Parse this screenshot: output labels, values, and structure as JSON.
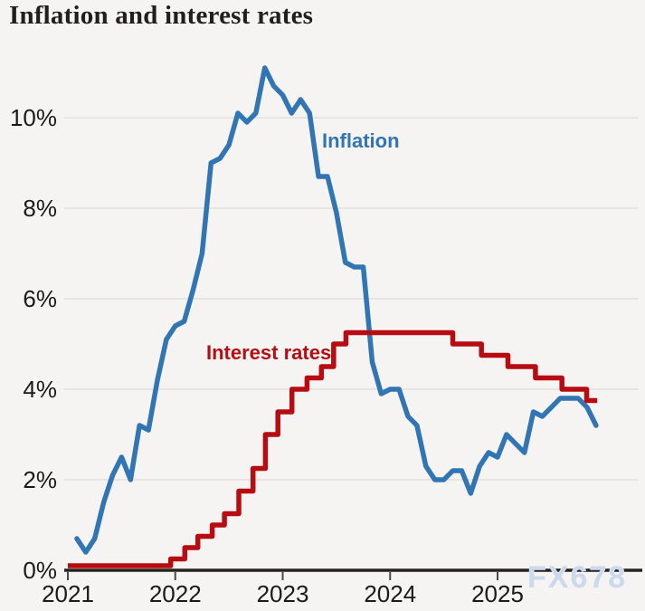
{
  "page": {
    "title": "Inflation and interest rates",
    "watermark": "FX678"
  },
  "colors": {
    "inflation_blue": "#3175b5",
    "interest_red": "#b70d12",
    "grid": "#e2e0dd",
    "axis": "#262220",
    "tick": "#4a4a4a",
    "label_text": "#1a1a1a",
    "background": "#f5f4f2",
    "watermark": "#ccd9ec"
  },
  "chart_data": {
    "type": "line",
    "title": "Inflation and interest rates",
    "xlabel": "",
    "ylabel": "",
    "x_ticks": [
      2021,
      2022,
      2023,
      2024,
      2025
    ],
    "x_tick_labels": [
      "2021",
      "2022",
      "2023",
      "2024",
      "2025"
    ],
    "y_ticks": [
      0,
      2,
      4,
      6,
      8,
      10
    ],
    "y_tick_labels": [
      "0%",
      "2%",
      "4%",
      "6%",
      "8%",
      "10%"
    ],
    "xlim": [
      2021,
      2026.4
    ],
    "ylim": [
      0,
      11.6
    ],
    "grid": "horizontal-only",
    "legend_position": "inline-labels-on-chart",
    "series": [
      {
        "name": "Inflation",
        "style": "line",
        "unit": "%",
        "color_key": "inflation_blue",
        "monthly_points": [
          [
            "2021-01",
            0.7
          ],
          [
            "2021-02",
            0.4
          ],
          [
            "2021-03",
            0.7
          ],
          [
            "2021-04",
            1.5
          ],
          [
            "2021-05",
            2.1
          ],
          [
            "2021-06",
            2.5
          ],
          [
            "2021-07",
            2.0
          ],
          [
            "2021-08",
            3.2
          ],
          [
            "2021-09",
            3.1
          ],
          [
            "2021-10",
            4.2
          ],
          [
            "2021-11",
            5.1
          ],
          [
            "2021-12",
            5.4
          ],
          [
            "2022-01",
            5.5
          ],
          [
            "2022-02",
            6.2
          ],
          [
            "2022-03",
            7.0
          ],
          [
            "2022-04",
            9.0
          ],
          [
            "2022-05",
            9.1
          ],
          [
            "2022-06",
            9.4
          ],
          [
            "2022-07",
            10.1
          ],
          [
            "2022-08",
            9.9
          ],
          [
            "2022-09",
            10.1
          ],
          [
            "2022-10",
            11.1
          ],
          [
            "2022-11",
            10.7
          ],
          [
            "2022-12",
            10.5
          ],
          [
            "2023-01",
            10.1
          ],
          [
            "2023-02",
            10.4
          ],
          [
            "2023-03",
            10.1
          ],
          [
            "2023-04",
            8.7
          ],
          [
            "2023-05",
            8.7
          ],
          [
            "2023-06",
            7.9
          ],
          [
            "2023-07",
            6.8
          ],
          [
            "2023-08",
            6.7
          ],
          [
            "2023-09",
            6.7
          ],
          [
            "2023-10",
            4.6
          ],
          [
            "2023-11",
            3.9
          ],
          [
            "2023-12",
            4.0
          ],
          [
            "2024-01",
            4.0
          ],
          [
            "2024-02",
            3.4
          ],
          [
            "2024-03",
            3.2
          ],
          [
            "2024-04",
            2.3
          ],
          [
            "2024-05",
            2.0
          ],
          [
            "2024-06",
            2.0
          ],
          [
            "2024-07",
            2.2
          ],
          [
            "2024-08",
            2.2
          ],
          [
            "2024-09",
            1.7
          ],
          [
            "2024-10",
            2.3
          ],
          [
            "2024-11",
            2.6
          ],
          [
            "2024-12",
            2.5
          ],
          [
            "2025-01",
            3.0
          ],
          [
            "2025-02",
            2.8
          ],
          [
            "2025-03",
            2.6
          ],
          [
            "2025-04",
            3.5
          ],
          [
            "2025-05",
            3.4
          ],
          [
            "2025-06",
            3.6
          ],
          [
            "2025-07",
            3.8
          ],
          [
            "2025-08",
            3.8
          ],
          [
            "2025-09",
            3.8
          ],
          [
            "2025-10",
            3.6
          ],
          [
            "2025-11",
            3.2
          ]
        ]
      },
      {
        "name": "Interest rates",
        "style": "step",
        "unit": "%",
        "color_key": "interest_red",
        "changes": [
          [
            "2021-01-01",
            0.1
          ],
          [
            "2021-12-16",
            0.25
          ],
          [
            "2022-02-03",
            0.5
          ],
          [
            "2022-03-17",
            0.75
          ],
          [
            "2022-05-05",
            1.0
          ],
          [
            "2022-06-16",
            1.25
          ],
          [
            "2022-08-04",
            1.75
          ],
          [
            "2022-09-22",
            2.25
          ],
          [
            "2022-11-03",
            3.0
          ],
          [
            "2022-12-15",
            3.5
          ],
          [
            "2023-02-02",
            4.0
          ],
          [
            "2023-03-23",
            4.25
          ],
          [
            "2023-05-11",
            4.5
          ],
          [
            "2023-06-22",
            5.0
          ],
          [
            "2023-08-03",
            5.25
          ],
          [
            "2024-08-01",
            5.0
          ],
          [
            "2024-11-07",
            4.75
          ],
          [
            "2025-02-06",
            4.5
          ],
          [
            "2025-05-08",
            4.25
          ],
          [
            "2025-08-07",
            4.0
          ],
          [
            "2025-10-30",
            3.75
          ]
        ],
        "end": "2025-12-05"
      }
    ]
  }
}
